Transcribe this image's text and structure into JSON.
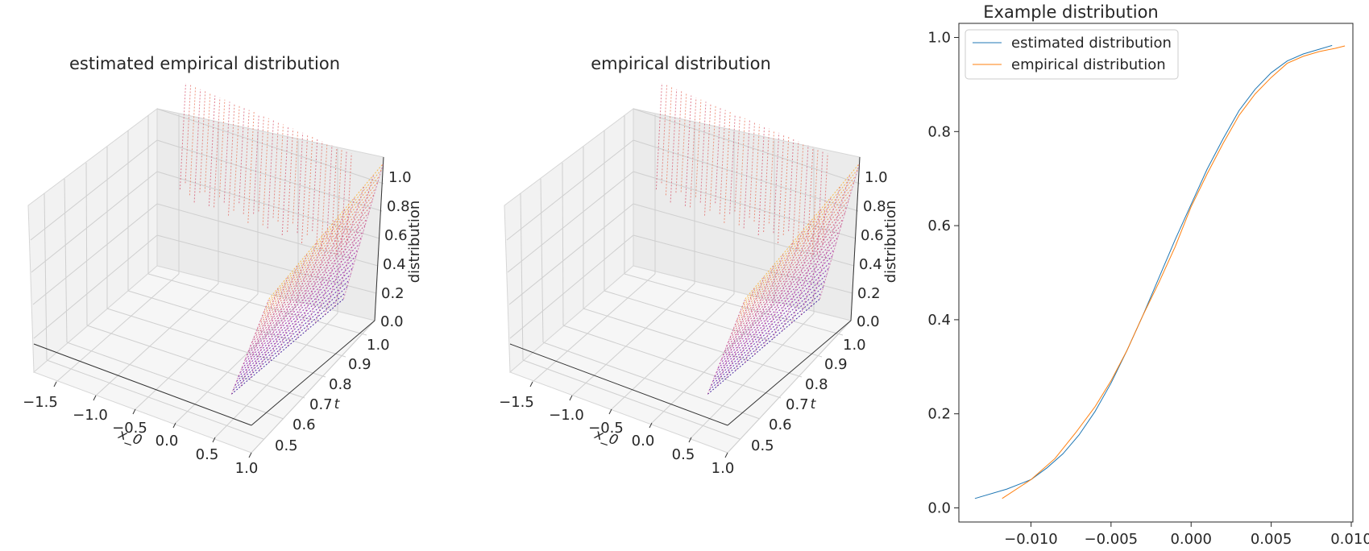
{
  "chart_data": [
    {
      "type": "surface3d",
      "title": "estimated empirical distribution",
      "xlabel": "x_0",
      "ylabel": "t",
      "zlabel": "distribution",
      "xticks": [
        "−1.5",
        "−1.0",
        "−0.5",
        "0.0",
        "0.5",
        "1.0"
      ],
      "yticks": [
        "0.5",
        "0.6",
        "0.7",
        "0.8",
        "0.9",
        "1.0"
      ],
      "zticks": [
        "0.0",
        "0.2",
        "0.4",
        "0.6",
        "0.8",
        "1.0"
      ],
      "xlim": [
        -1.75,
        1.0
      ],
      "ylim": [
        0.45,
        1.0
      ],
      "zlim": [
        0.0,
        1.0
      ],
      "colormap": "plasma",
      "curtain_x_range": [
        -1.5,
        0.6
      ],
      "surface_x_range": [
        0.6,
        1.0
      ]
    },
    {
      "type": "surface3d",
      "title": "empirical distribution",
      "xlabel": "x_0",
      "ylabel": "t",
      "zlabel": "distribution",
      "xticks": [
        "−1.5",
        "−1.0",
        "−0.5",
        "0.0",
        "0.5",
        "1.0"
      ],
      "yticks": [
        "0.5",
        "0.6",
        "0.7",
        "0.8",
        "0.9",
        "1.0"
      ],
      "zticks": [
        "0.0",
        "0.2",
        "0.4",
        "0.6",
        "0.8",
        "1.0"
      ],
      "xlim": [
        -1.75,
        1.0
      ],
      "ylim": [
        0.45,
        1.0
      ],
      "zlim": [
        0.0,
        1.0
      ],
      "colormap": "plasma",
      "curtain_x_range": [
        -1.5,
        0.6
      ],
      "surface_x_range": [
        0.6,
        1.0
      ]
    },
    {
      "type": "line",
      "title": "Example distribution",
      "xlabel": "",
      "ylabel": "",
      "xlim": [
        -0.0145,
        0.0101
      ],
      "ylim": [
        -0.03,
        1.03
      ],
      "xticks": [
        "−0.010",
        "−0.005",
        "0.000",
        "0.005",
        "0.010"
      ],
      "xtick_values": [
        -0.01,
        -0.005,
        0.0,
        0.005,
        0.01
      ],
      "yticks": [
        "0.0",
        "0.2",
        "0.4",
        "0.6",
        "0.8",
        "1.0"
      ],
      "ytick_values": [
        0.0,
        0.2,
        0.4,
        0.6,
        0.8,
        1.0
      ],
      "grid": false,
      "legend": "top-left",
      "series": [
        {
          "name": "estimated distribution",
          "color": "#1f77b4",
          "x": [
            -0.0135,
            -0.0115,
            -0.01,
            -0.009,
            -0.008,
            -0.007,
            -0.006,
            -0.005,
            -0.004,
            -0.003,
            -0.002,
            -0.001,
            0.0,
            0.001,
            0.002,
            0.003,
            0.004,
            0.005,
            0.006,
            0.007,
            0.008,
            0.0088
          ],
          "y": [
            0.02,
            0.04,
            0.06,
            0.085,
            0.115,
            0.155,
            0.205,
            0.265,
            0.335,
            0.41,
            0.49,
            0.57,
            0.645,
            0.72,
            0.785,
            0.845,
            0.89,
            0.925,
            0.95,
            0.965,
            0.975,
            0.983
          ]
        },
        {
          "name": "empirical distribution",
          "color": "#ff7f0e",
          "x": [
            -0.0118,
            -0.01,
            -0.0085,
            -0.0072,
            -0.006,
            -0.005,
            -0.004,
            -0.003,
            -0.002,
            -0.001,
            0.0,
            0.001,
            0.002,
            0.003,
            0.004,
            0.005,
            0.006,
            0.007,
            0.008,
            0.009,
            0.0096
          ],
          "y": [
            0.02,
            0.06,
            0.105,
            0.16,
            0.215,
            0.27,
            0.335,
            0.41,
            0.48,
            0.555,
            0.64,
            0.71,
            0.775,
            0.835,
            0.88,
            0.915,
            0.945,
            0.96,
            0.97,
            0.977,
            0.982
          ]
        }
      ]
    }
  ]
}
